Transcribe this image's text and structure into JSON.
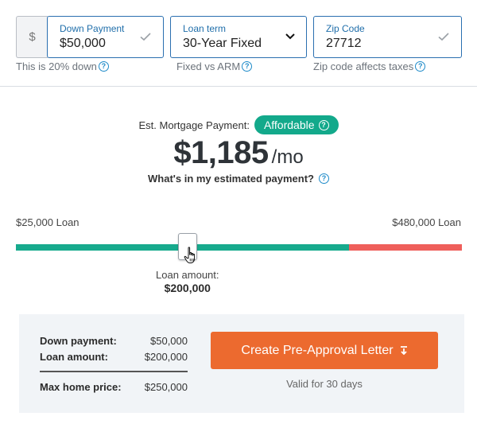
{
  "fields": {
    "down_payment": {
      "prefix": "$",
      "label": "Down Payment",
      "value": "$50,000",
      "helper": "This is 20% down"
    },
    "loan_term": {
      "label": "Loan term",
      "value": "30-Year Fixed",
      "helper": "Fixed vs ARM"
    },
    "zip": {
      "label": "Zip Code",
      "value": "27712",
      "helper": "Zip code affects taxes"
    }
  },
  "payment": {
    "label": "Est. Mortgage Payment:",
    "badge": "Affordable",
    "amount": "$1,185",
    "unit": "/mo",
    "whats_in": "What's in my estimated payment?"
  },
  "slider": {
    "min_label": "$25,000 Loan",
    "max_label": "$480,000 Loan",
    "min": 25000,
    "max": 480000,
    "value": 200000,
    "affordable_max": 365000,
    "caption": "Loan amount:",
    "value_label": "$200,000"
  },
  "summary": {
    "rows": [
      {
        "key": "Down payment:",
        "value": "$50,000"
      },
      {
        "key": "Loan amount:",
        "value": "$200,000"
      }
    ],
    "total": {
      "key": "Max home price:",
      "value": "$250,000"
    },
    "cta": "Create Pre-Approval Letter",
    "note": "Valid for 30 days"
  },
  "colors": {
    "accent_blue": "#2a6fb0",
    "affordable_green": "#13a98b",
    "over_red": "#ef5f5b",
    "cta_orange": "#ec6a2f"
  },
  "icons": {
    "check": "check-icon",
    "chevron": "chevron-down-icon",
    "help": "question-circle-icon",
    "download": "download-icon",
    "cursor": "hand-cursor-icon"
  }
}
